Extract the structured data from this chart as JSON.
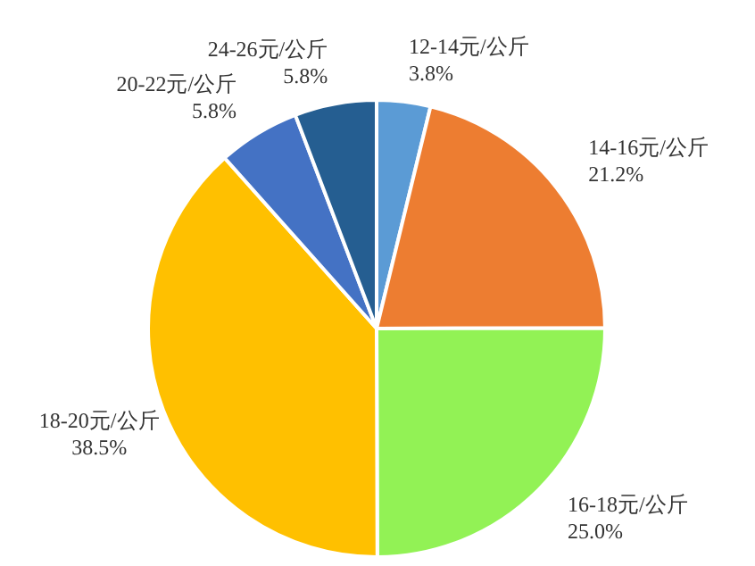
{
  "chart_data": {
    "type": "pie",
    "categories": [
      "12-14元/公斤",
      "14-16元/公斤",
      "16-18元/公斤",
      "18-20元/公斤",
      "20-22元/公斤",
      "24-26元/公斤"
    ],
    "values": [
      3.8,
      21.2,
      25.0,
      38.5,
      5.8,
      5.8
    ],
    "value_labels": [
      "3.8%",
      "21.2%",
      "25.0%",
      "38.5%",
      "5.8%",
      "5.8%"
    ],
    "colors": [
      "#5b9bd5",
      "#ed7d31",
      "#92f255",
      "#ffc000",
      "#4472c4",
      "#255e91"
    ]
  }
}
